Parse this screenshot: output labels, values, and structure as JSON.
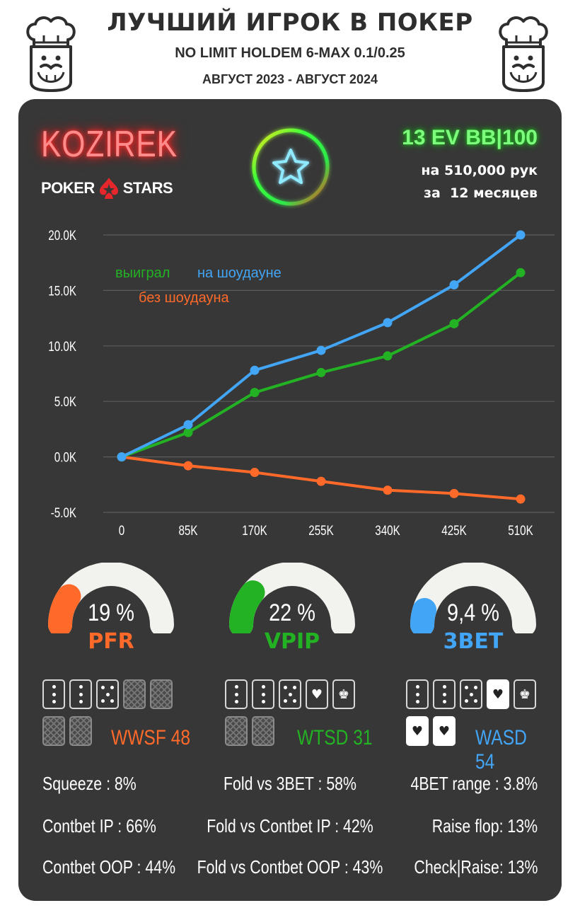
{
  "header": {
    "title": "ЛУЧШИЙ ИГРОК В ПОКЕР",
    "subtitle": "NO LIMIT HOLDEM 6-MAX 0.1/0.25",
    "period": "АВГУСТ 2023 - АВГУСТ 2024"
  },
  "player": {
    "name": "KOZIREK",
    "room_left": "POKER",
    "room_right": "STARS"
  },
  "summary": {
    "ev": "13 EV BB|100",
    "hands": "на 510,000 рук",
    "months": "за  12 месяцев"
  },
  "colors": {
    "green": "#23b223",
    "blue": "#42a5f5",
    "orange": "#ff6a2a",
    "card_bg": "#373737",
    "neon_red": "#ff2a2a"
  },
  "chart_data": {
    "type": "line",
    "x": [
      "0",
      "85K",
      "170K",
      "255K",
      "340K",
      "425K",
      "510K"
    ],
    "yticks": [
      "20.0K",
      "15.0K",
      "10.0K",
      "5.0K",
      "0.0K",
      "-5.0K"
    ],
    "ylim": [
      -5000,
      20000
    ],
    "grid": true,
    "legend_placement": "top-left",
    "series": [
      {
        "name": "на шоудауне",
        "color": "#42a5f5",
        "values": [
          0,
          2900,
          7800,
          9600,
          12100,
          15500,
          20000
        ]
      },
      {
        "name": "выиграл",
        "color": "#23b223",
        "values": [
          0,
          2200,
          5800,
          7600,
          9100,
          12000,
          16600
        ]
      },
      {
        "name": "без шоудауна",
        "color": "#ff6a2a",
        "values": [
          0,
          -800,
          -1400,
          -2200,
          -3000,
          -3300,
          -3800
        ]
      }
    ]
  },
  "gauges": [
    {
      "value": "19 %",
      "fraction": 0.19,
      "label": "PFR",
      "color": "#ff6a2a"
    },
    {
      "value": "22 %",
      "fraction": 0.22,
      "label": "VPIP",
      "color": "#23b223"
    },
    {
      "value": "9,4 %",
      "fraction": 0.094,
      "label": "3BET",
      "color": "#42a5f5"
    }
  ],
  "big_stats": {
    "wwsf": "WWSF 48",
    "wtsd": "WTSD 31",
    "wasd": "WASD 54"
  },
  "stats": {
    "squeeze": "Squeeze : 8%",
    "contbet_ip": "Contbet IP : 66%",
    "contbet_oop": "Contbet OOP : 44%",
    "fold_vs_3bet": "Fold vs 3BET : 58%",
    "fold_vs_cb_ip": "Fold vs Contbet IP : 42%",
    "fold_vs_cb_oop": "Fold vs Contbet OOP : 43%",
    "fourbet": "4BET range : 3.8%",
    "raise_flop": "Raise flop: 13%",
    "check_raise": "Check|Raise: 13%"
  }
}
